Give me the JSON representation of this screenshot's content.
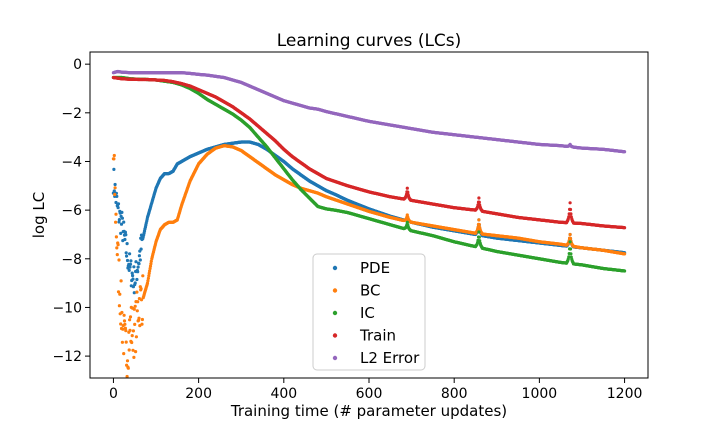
{
  "chart_data": {
    "type": "scatter",
    "title": "Learning curves (LCs)",
    "xlabel": "Training time (# parameter updates)",
    "ylabel": "log LC",
    "xlim": [
      -55,
      1255
    ],
    "ylim": [
      -12.9,
      0.5
    ],
    "xticks": [
      0,
      200,
      400,
      600,
      800,
      1000,
      1200
    ],
    "yticks": [
      0,
      -2,
      -4,
      -6,
      -8,
      -10,
      -12
    ],
    "xtick_labels": [
      "0",
      "200",
      "400",
      "600",
      "800",
      "1000",
      "1200"
    ],
    "ytick_labels": [
      "0",
      "−2",
      "−4",
      "−6",
      "−8",
      "−10",
      "−12"
    ],
    "grid": false,
    "legend_position": "lower-center",
    "series": [
      {
        "name": "PDE",
        "color": "#1f77b4",
        "x": [
          0,
          10,
          20,
          30,
          40,
          50,
          60,
          70,
          80,
          90,
          100,
          110,
          120,
          130,
          140,
          150,
          160,
          170,
          180,
          200,
          220,
          240,
          260,
          280,
          300,
          320,
          340,
          360,
          380,
          400,
          420,
          440,
          460,
          480,
          500,
          520,
          550,
          600,
          650,
          700,
          750,
          800,
          850,
          900,
          950,
          1000,
          1050,
          1100,
          1150,
          1200
        ],
        "y": [
          -4.7,
          -6.0,
          -6.6,
          -7.6,
          -8.5,
          -8.9,
          -8.0,
          -7.1,
          -6.3,
          -5.7,
          -5.1,
          -4.7,
          -4.5,
          -4.5,
          -4.4,
          -4.1,
          -4.0,
          -3.9,
          -3.8,
          -3.65,
          -3.5,
          -3.4,
          -3.3,
          -3.25,
          -3.2,
          -3.2,
          -3.3,
          -3.5,
          -3.75,
          -4.0,
          -4.3,
          -4.55,
          -4.8,
          -5.0,
          -5.2,
          -5.35,
          -5.6,
          -5.95,
          -6.25,
          -6.5,
          -6.7,
          -6.85,
          -7.0,
          -7.15,
          -7.25,
          -7.35,
          -7.45,
          -7.55,
          -7.65,
          -7.75
        ],
        "spikes": [
          {
            "x": 690,
            "y": -6.3
          },
          {
            "x": 858,
            "y": -6.4
          },
          {
            "x": 1072,
            "y": -7.0
          }
        ]
      },
      {
        "name": "BC",
        "color": "#ff7f0e",
        "x": [
          0,
          10,
          20,
          30,
          40,
          50,
          60,
          70,
          80,
          90,
          100,
          110,
          120,
          130,
          140,
          150,
          160,
          180,
          200,
          220,
          240,
          260,
          280,
          300,
          320,
          340,
          360,
          380,
          400,
          420,
          440,
          460,
          480,
          500,
          550,
          600,
          650,
          700,
          750,
          800,
          850,
          900,
          950,
          1000,
          1050,
          1100,
          1150,
          1200
        ],
        "y": [
          -3.9,
          -8.0,
          -10.5,
          -12.0,
          -10.8,
          -11.0,
          -9.8,
          -9.6,
          -9.0,
          -8.0,
          -7.3,
          -6.8,
          -6.6,
          -6.5,
          -6.5,
          -6.4,
          -5.8,
          -4.8,
          -4.1,
          -3.7,
          -3.45,
          -3.35,
          -3.4,
          -3.55,
          -3.8,
          -4.05,
          -4.3,
          -4.55,
          -4.75,
          -4.95,
          -5.1,
          -5.2,
          -5.3,
          -5.45,
          -5.75,
          -6.05,
          -6.3,
          -6.5,
          -6.65,
          -6.8,
          -6.95,
          -7.05,
          -7.15,
          -7.3,
          -7.4,
          -7.55,
          -7.65,
          -7.8
        ],
        "spikes": [
          {
            "x": 690,
            "y": -6.2
          },
          {
            "x": 858,
            "y": -6.4
          },
          {
            "x": 1072,
            "y": -7.0
          }
        ]
      },
      {
        "name": "IC",
        "color": "#2ca02c",
        "x": [
          0,
          20,
          40,
          60,
          80,
          100,
          120,
          140,
          160,
          180,
          200,
          220,
          240,
          260,
          280,
          300,
          320,
          340,
          360,
          380,
          400,
          420,
          440,
          460,
          480,
          500,
          520,
          550,
          600,
          650,
          700,
          750,
          800,
          850,
          900,
          950,
          1000,
          1050,
          1100,
          1150,
          1200
        ],
        "y": [
          -0.55,
          -0.55,
          -0.6,
          -0.62,
          -0.63,
          -0.65,
          -0.7,
          -0.75,
          -0.85,
          -1.0,
          -1.2,
          -1.45,
          -1.65,
          -1.85,
          -2.05,
          -2.3,
          -2.6,
          -3.0,
          -3.4,
          -3.85,
          -4.3,
          -4.75,
          -5.15,
          -5.5,
          -5.85,
          -5.95,
          -6.0,
          -6.1,
          -6.35,
          -6.6,
          -6.85,
          -7.05,
          -7.3,
          -7.5,
          -7.7,
          -7.85,
          -8.0,
          -8.15,
          -8.25,
          -8.4,
          -8.5
        ],
        "spikes": [
          {
            "x": 690,
            "y": -6.5
          },
          {
            "x": 858,
            "y": -6.9
          },
          {
            "x": 1072,
            "y": -7.3
          }
        ]
      },
      {
        "name": "Train",
        "color": "#d62728",
        "x": [
          0,
          20,
          40,
          60,
          80,
          100,
          120,
          140,
          160,
          180,
          200,
          220,
          240,
          260,
          280,
          300,
          320,
          340,
          360,
          380,
          400,
          420,
          440,
          460,
          480,
          500,
          550,
          600,
          650,
          700,
          750,
          800,
          850,
          900,
          950,
          1000,
          1050,
          1100,
          1150,
          1200
        ],
        "y": [
          -0.55,
          -0.6,
          -0.62,
          -0.63,
          -0.63,
          -0.65,
          -0.67,
          -0.72,
          -0.8,
          -0.9,
          -1.05,
          -1.2,
          -1.35,
          -1.55,
          -1.75,
          -2.0,
          -2.25,
          -2.55,
          -2.85,
          -3.15,
          -3.5,
          -3.8,
          -4.05,
          -4.3,
          -4.5,
          -4.7,
          -5.0,
          -5.25,
          -5.45,
          -5.6,
          -5.75,
          -5.9,
          -6.0,
          -6.15,
          -6.3,
          -6.4,
          -6.5,
          -6.55,
          -6.65,
          -6.72
        ],
        "spikes": [
          {
            "x": 690,
            "y": -5.1
          },
          {
            "x": 858,
            "y": -5.5
          },
          {
            "x": 1072,
            "y": -5.7
          }
        ]
      },
      {
        "name": "L2 Error",
        "color": "#9467bd",
        "x": [
          0,
          10,
          20,
          40,
          60,
          80,
          100,
          120,
          140,
          160,
          180,
          200,
          220,
          240,
          260,
          280,
          300,
          320,
          340,
          360,
          380,
          400,
          420,
          440,
          460,
          480,
          500,
          550,
          600,
          650,
          700,
          750,
          800,
          850,
          900,
          950,
          1000,
          1050,
          1100,
          1150,
          1200
        ],
        "y": [
          -0.35,
          -0.3,
          -0.33,
          -0.35,
          -0.35,
          -0.35,
          -0.35,
          -0.35,
          -0.35,
          -0.35,
          -0.38,
          -0.42,
          -0.45,
          -0.5,
          -0.55,
          -0.65,
          -0.75,
          -0.9,
          -1.05,
          -1.2,
          -1.35,
          -1.5,
          -1.6,
          -1.7,
          -1.8,
          -1.85,
          -1.95,
          -2.15,
          -2.35,
          -2.5,
          -2.65,
          -2.8,
          -2.9,
          -3.0,
          -3.1,
          -3.2,
          -3.3,
          -3.35,
          -3.45,
          -3.5,
          -3.6
        ],
        "spikes": [
          {
            "x": 1072,
            "y": -3.3
          }
        ]
      }
    ]
  }
}
